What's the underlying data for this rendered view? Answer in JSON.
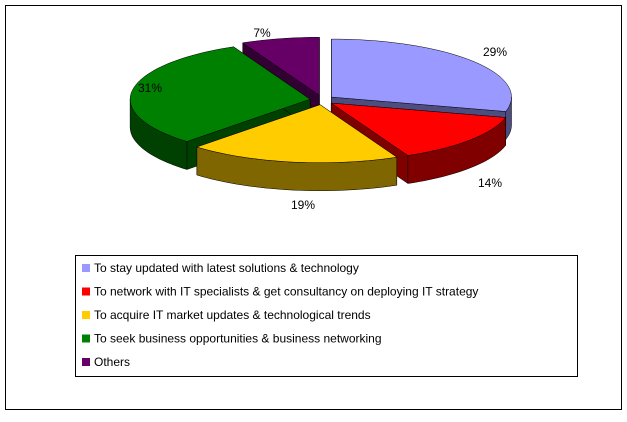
{
  "chart_data": {
    "type": "pie",
    "categories": [
      "To stay updated with latest solutions & technology",
      "To network with IT specialists & get consultancy on deploying IT  strategy",
      "To acquire IT market updates & technological trends",
      "To seek business opportunities & business networking",
      "Others"
    ],
    "values": [
      29,
      14,
      19,
      31,
      7
    ],
    "value_labels": [
      "29%",
      "14%",
      "19%",
      "31%",
      "7%"
    ],
    "colors": [
      "#9999ff",
      "#ff0000",
      "#ffcc00",
      "#008000",
      "#660066"
    ],
    "side_colors": [
      "#4d4d80",
      "#800000",
      "#806600",
      "#004000",
      "#330033"
    ]
  }
}
